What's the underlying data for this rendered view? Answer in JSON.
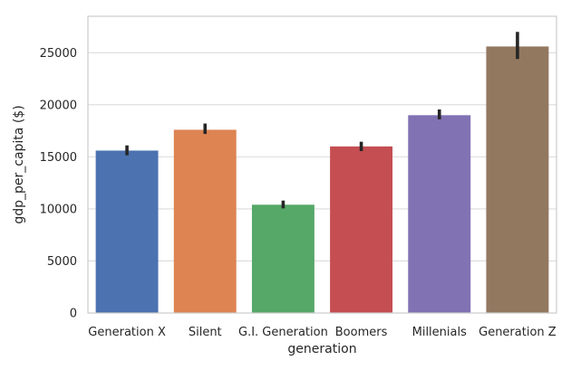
{
  "chart_data": {
    "type": "bar",
    "title": "",
    "xlabel": "generation",
    "ylabel": "gdp_per_capita ($)",
    "categories": [
      "Generation X",
      "Silent",
      "G.I. Generation",
      "Boomers",
      "Millenials",
      "Generation Z"
    ],
    "values": [
      15600,
      17600,
      10400,
      16000,
      19000,
      25600
    ],
    "error_low": [
      15150,
      17200,
      10050,
      15550,
      18600,
      24400
    ],
    "error_high": [
      16100,
      18200,
      10800,
      16450,
      19550,
      27000
    ],
    "ylim": [
      0,
      28500
    ],
    "yticks": [
      0,
      5000,
      10000,
      15000,
      20000,
      25000
    ],
    "grid": "horizontal",
    "colors": [
      "#4c72b0",
      "#dd8452",
      "#55a868",
      "#c44e52",
      "#8172b3",
      "#937860"
    ],
    "error_color": "#262626",
    "grid_color": "#dcdcdc",
    "frame_color": "#cccccc"
  }
}
